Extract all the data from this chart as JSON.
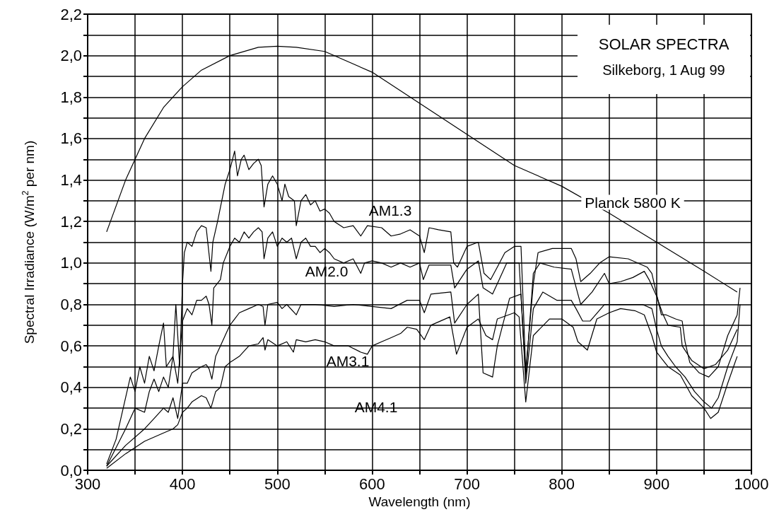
{
  "chart_data": {
    "type": "line",
    "title": "SOLAR SPECTRA",
    "subtitle": "Silkeborg, 1 Aug 99",
    "xlabel": "Wavelength (nm)",
    "ylabel": "Spectral Irradiance (W/m$^{2}$ per nm)",
    "xlim": [
      300,
      1000
    ],
    "xticks": [
      300,
      {
        "value": 350,
        "label": null
      },
      400,
      {
        "value": 450,
        "label": null
      },
      500,
      {
        "value": 550,
        "label": null
      },
      600,
      {
        "value": 650,
        "label": null
      },
      700,
      {
        "value": 750,
        "label": null
      },
      800,
      {
        "value": 850,
        "label": null
      },
      900,
      {
        "value": 950,
        "label": null
      },
      1000
    ],
    "ylim": [
      0,
      2.2
    ],
    "yticks": [
      {
        "value": 0,
        "label": "0,0"
      },
      {
        "value": 0.1,
        "label": null
      },
      {
        "value": 0.2,
        "label": "0,2"
      },
      {
        "value": 0.3,
        "label": null
      },
      {
        "value": 0.4,
        "label": "0,4"
      },
      {
        "value": 0.5,
        "label": null
      },
      {
        "value": 0.6,
        "label": "0,6"
      },
      {
        "value": 0.7,
        "label": null
      },
      {
        "value": 0.8,
        "label": "0,8"
      },
      {
        "value": 0.9,
        "label": null
      },
      {
        "value": 1.0,
        "label": "1,0"
      },
      {
        "value": 1.1,
        "label": null
      },
      {
        "value": 1.2,
        "label": "1,2"
      },
      {
        "value": 1.3,
        "label": null
      },
      {
        "value": 1.4,
        "label": "1,4"
      },
      {
        "value": 1.5,
        "label": null
      },
      {
        "value": 1.6,
        "label": "1,6"
      },
      {
        "value": 1.7,
        "label": null
      },
      {
        "value": 1.8,
        "label": "1,8"
      },
      {
        "value": 1.9,
        "label": null
      },
      {
        "value": 2.0,
        "label": "2,0"
      },
      {
        "value": 2.1,
        "label": null
      },
      {
        "value": 2.2,
        "label": "2,2"
      }
    ],
    "grid": true,
    "marker": "none",
    "line_style": "solid",
    "series": [
      {
        "color": "#000000",
        "x": [
          320,
          340,
          360,
          380,
          400,
          420,
          450,
          480,
          500,
          520,
          550,
          600,
          650,
          700,
          750,
          800,
          850,
          900,
          950,
          985
        ],
        "values": [
          1.15,
          1.4,
          1.6,
          1.75,
          1.85,
          1.93,
          2.0,
          2.04,
          2.045,
          2.04,
          2.02,
          1.92,
          1.77,
          1.62,
          1.47,
          1.37,
          1.24,
          1.1,
          0.96,
          0.86
        ]
      },
      {
        "color": "#000000",
        "x": [
          320,
          330,
          340,
          345,
          350,
          355,
          360,
          365,
          370,
          375,
          380,
          383,
          390,
          393,
          397,
          400,
          402,
          405,
          410,
          415,
          420,
          425,
          430,
          432,
          437,
          445,
          450,
          455,
          458,
          462,
          465,
          470,
          475,
          480,
          483,
          486,
          490,
          495,
          500,
          505,
          508,
          512,
          518,
          520,
          525,
          530,
          535,
          540,
          545,
          550,
          555,
          560,
          570,
          580,
          588,
          595,
          610,
          620,
          630,
          640,
          650,
          655,
          660,
          670,
          683,
          686,
          690,
          700,
          712,
          718,
          725,
          732,
          740,
          750,
          757,
          762,
          770,
          775,
          790,
          810,
          815,
          820,
          830,
          840,
          850,
          870,
          890,
          895,
          900,
          905,
          910,
          920,
          927,
          930,
          935,
          945,
          955,
          965,
          975,
          985,
          988
        ],
        "values": [
          0.03,
          0.15,
          0.35,
          0.45,
          0.38,
          0.5,
          0.42,
          0.55,
          0.48,
          0.6,
          0.71,
          0.5,
          0.55,
          0.8,
          0.5,
          0.9,
          1.05,
          1.1,
          1.08,
          1.15,
          1.18,
          1.17,
          0.96,
          1.1,
          1.2,
          1.38,
          1.45,
          1.54,
          1.42,
          1.5,
          1.52,
          1.45,
          1.48,
          1.5,
          1.47,
          1.27,
          1.38,
          1.42,
          1.38,
          1.3,
          1.38,
          1.32,
          1.3,
          1.18,
          1.3,
          1.33,
          1.28,
          1.3,
          1.25,
          1.26,
          1.24,
          1.2,
          1.17,
          1.18,
          1.13,
          1.18,
          1.17,
          1.13,
          1.14,
          1.16,
          1.13,
          1.05,
          1.17,
          1.16,
          1.15,
          1.0,
          0.98,
          1.08,
          1.1,
          0.95,
          0.92,
          0.98,
          1.05,
          1.08,
          1.08,
          0.48,
          0.9,
          1.05,
          1.07,
          1.07,
          1.02,
          0.91,
          0.95,
          1.0,
          1.03,
          1.02,
          0.98,
          0.95,
          0.85,
          0.75,
          0.75,
          0.73,
          0.72,
          0.62,
          0.52,
          0.47,
          0.45,
          0.5,
          0.65,
          0.75,
          0.88
        ]
      },
      {
        "color": "#000000",
        "x": [
          320,
          340,
          350,
          360,
          365,
          370,
          375,
          380,
          385,
          390,
          395,
          400,
          405,
          410,
          415,
          420,
          425,
          428,
          431,
          433,
          440,
          443,
          450,
          455,
          460,
          465,
          470,
          475,
          480,
          484,
          486,
          490,
          495,
          500,
          505,
          510,
          515,
          520,
          525,
          530,
          535,
          540,
          545,
          550,
          555,
          560,
          570,
          580,
          588,
          592,
          600,
          610,
          620,
          630,
          640,
          650,
          654,
          660,
          683,
          687,
          700,
          712,
          717,
          727,
          732,
          742,
          755,
          762,
          770,
          777,
          792,
          810,
          817,
          820,
          832,
          845,
          850,
          862,
          875,
          887,
          892,
          900,
          906,
          912,
          925,
          927,
          937,
          950,
          962,
          975,
          985
        ],
        "values": [
          0.02,
          0.2,
          0.3,
          0.28,
          0.38,
          0.44,
          0.38,
          0.45,
          0.4,
          0.55,
          0.42,
          0.72,
          0.78,
          0.75,
          0.82,
          0.82,
          0.84,
          0.8,
          0.7,
          0.88,
          0.92,
          1.0,
          1.08,
          1.12,
          1.1,
          1.15,
          1.12,
          1.15,
          1.17,
          1.15,
          1.02,
          1.12,
          1.15,
          1.08,
          1.12,
          1.1,
          1.12,
          1.02,
          1.1,
          1.12,
          1.08,
          1.08,
          1.05,
          1.07,
          1.05,
          1.02,
          1.0,
          1.02,
          0.95,
          1.0,
          1.01,
          1.0,
          0.98,
          1.0,
          0.98,
          1.0,
          0.92,
          0.99,
          0.99,
          0.88,
          0.97,
          1.01,
          0.88,
          0.85,
          0.9,
          1.0,
          1.0,
          0.45,
          0.95,
          1.0,
          0.98,
          0.97,
          0.85,
          0.8,
          0.86,
          0.95,
          0.9,
          0.91,
          0.93,
          0.96,
          0.92,
          0.84,
          0.76,
          0.7,
          0.69,
          0.6,
          0.53,
          0.49,
          0.51,
          0.58,
          0.68
        ]
      },
      {
        "color": "#000000",
        "x": [
          320,
          340,
          360,
          370,
          380,
          385,
          390,
          395,
          400,
          405,
          410,
          420,
          425,
          428,
          431,
          435,
          440,
          445,
          450,
          455,
          460,
          470,
          480,
          485,
          487,
          490,
          500,
          505,
          510,
          520,
          525,
          540,
          560,
          580,
          600,
          620,
          637,
          650,
          655,
          662,
          683,
          687,
          700,
          712,
          717,
          727,
          732,
          745,
          757,
          762,
          770,
          780,
          795,
          810,
          815,
          822,
          830,
          845,
          855,
          870,
          885,
          895,
          900,
          905,
          912,
          920,
          930,
          940,
          950,
          958,
          965,
          975,
          985,
          988
        ],
        "values": [
          0.02,
          0.12,
          0.2,
          0.25,
          0.3,
          0.28,
          0.35,
          0.25,
          0.42,
          0.42,
          0.47,
          0.5,
          0.51,
          0.49,
          0.44,
          0.55,
          0.6,
          0.65,
          0.7,
          0.73,
          0.76,
          0.78,
          0.8,
          0.79,
          0.7,
          0.8,
          0.81,
          0.78,
          0.8,
          0.75,
          0.8,
          0.8,
          0.79,
          0.8,
          0.79,
          0.78,
          0.82,
          0.82,
          0.76,
          0.85,
          0.86,
          0.71,
          0.8,
          0.85,
          0.47,
          0.45,
          0.6,
          0.83,
          0.85,
          0.42,
          0.78,
          0.86,
          0.82,
          0.82,
          0.78,
          0.72,
          0.72,
          0.8,
          0.8,
          0.8,
          0.8,
          0.78,
          0.68,
          0.6,
          0.55,
          0.5,
          0.45,
          0.38,
          0.33,
          0.3,
          0.35,
          0.5,
          0.62,
          0.8
        ]
      },
      {
        "color": "#000000",
        "x": [
          320,
          340,
          360,
          380,
          390,
          395,
          400,
          405,
          410,
          420,
          425,
          430,
          435,
          440,
          445,
          450,
          460,
          470,
          480,
          485,
          487,
          490,
          500,
          510,
          517,
          520,
          530,
          540,
          550,
          560,
          575,
          588,
          595,
          600,
          610,
          620,
          630,
          637,
          647,
          655,
          662,
          682,
          689,
          700,
          712,
          720,
          727,
          732,
          750,
          755,
          762,
          770,
          787,
          800,
          812,
          817,
          827,
          837,
          850,
          862,
          877,
          887,
          895,
          900,
          912,
          925,
          937,
          950,
          957,
          965,
          975,
          985
        ],
        "values": [
          0.01,
          0.08,
          0.14,
          0.18,
          0.2,
          0.22,
          0.28,
          0.3,
          0.33,
          0.36,
          0.35,
          0.3,
          0.38,
          0.4,
          0.5,
          0.52,
          0.55,
          0.6,
          0.61,
          0.64,
          0.58,
          0.63,
          0.6,
          0.62,
          0.57,
          0.63,
          0.62,
          0.63,
          0.62,
          0.6,
          0.6,
          0.57,
          0.56,
          0.6,
          0.62,
          0.64,
          0.66,
          0.69,
          0.68,
          0.63,
          0.7,
          0.74,
          0.56,
          0.69,
          0.73,
          0.65,
          0.63,
          0.73,
          0.76,
          0.74,
          0.33,
          0.65,
          0.73,
          0.73,
          0.69,
          0.62,
          0.58,
          0.73,
          0.76,
          0.78,
          0.77,
          0.75,
          0.65,
          0.57,
          0.5,
          0.46,
          0.36,
          0.3,
          0.25,
          0.28,
          0.42,
          0.55
        ]
      }
    ],
    "annotations": [
      "AM1.3",
      "AM2.0",
      "AM3.1",
      "AM4.1",
      "Planck 5800 K"
    ]
  }
}
